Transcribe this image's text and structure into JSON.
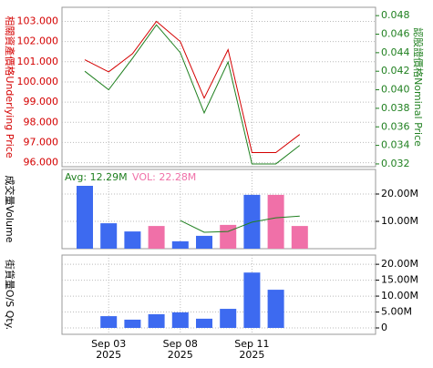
{
  "chart_data": [
    {
      "type": "line",
      "y_label": "相關資產價格Underlying Price",
      "y2_label": "認股證價格Nominal Price",
      "ylim": [
        95.8,
        103.7
      ],
      "yticks": [
        {
          "value": 96,
          "label": "96.000"
        },
        {
          "value": 97,
          "label": "97.000"
        },
        {
          "value": 98,
          "label": "98.000"
        },
        {
          "value": 99,
          "label": "99.000"
        },
        {
          "value": 100,
          "label": "100.000"
        },
        {
          "value": 101,
          "label": "101.000"
        },
        {
          "value": 102,
          "label": "102.000"
        },
        {
          "value": 103,
          "label": "103.000"
        }
      ],
      "y2lim": [
        0.0317,
        0.0489
      ],
      "y2ticks": [
        0.032,
        0.034,
        0.036,
        0.038,
        {
          "value": 0.04,
          "label": "0.040"
        },
        0.042,
        0.044,
        0.046,
        0.048
      ],
      "series": [
        {
          "color": "#d40000",
          "values": [
            101.1,
            100.5,
            101.4,
            103.0,
            102.0,
            99.2,
            101.6,
            96.5,
            96.5,
            97.4
          ]
        },
        {
          "color": "#208020",
          "axis": "y2",
          "values": [
            0.042,
            0.04,
            0.0434,
            0.047,
            0.044,
            0.0375,
            0.043,
            0.032,
            0.032,
            0.034
          ]
        }
      ]
    },
    {
      "type": "bar",
      "y_label": "成交量Volume",
      "avg_label": "Avg: 12.29M",
      "vol_label": "VOL: 22.28M",
      "ylim": [
        0,
        29000000
      ],
      "yticks": [
        {
          "value": 10000000,
          "label": "10.00M"
        },
        {
          "value": 20000000,
          "label": "20.00M"
        }
      ],
      "values": [
        23000000,
        9300000,
        6300000,
        8300000,
        2700000,
        4700000,
        8700000,
        19700000,
        19700000,
        8300000
      ],
      "colors": [
        "#3d6af0",
        "#3d6af0",
        "#3d6af0",
        "#f070a8",
        "#3d6af0",
        "#3d6af0",
        "#f070a8",
        "#3d6af0",
        "#f070a8",
        "#f070a8"
      ],
      "avg_color": "#208020",
      "avg": [
        null,
        null,
        null,
        null,
        10300000,
        6000000,
        6300000,
        9700000,
        11300000,
        11900000
      ]
    },
    {
      "type": "bar",
      "y_label": "街貨量O/S Qty.",
      "ylim": [
        -2000000,
        22900000
      ],
      "yticks": [
        0,
        {
          "value": 5000000,
          "label": "5.00M"
        },
        {
          "value": 10000000,
          "label": "10.00M"
        },
        {
          "value": 15000000,
          "label": "15.00M"
        },
        {
          "value": 20000000,
          "label": "20.00M"
        }
      ],
      "values": [
        null,
        3700000,
        2600000,
        4300000,
        4900000,
        2900000,
        6000000,
        17400000,
        12000000,
        null
      ],
      "color": "#3d6af0",
      "categories": [
        null,
        [
          "Sep 03",
          "2025"
        ],
        null,
        null,
        [
          "Sep 08",
          "2025"
        ],
        null,
        null,
        [
          "Sep 11",
          "2025"
        ],
        null,
        null
      ]
    }
  ]
}
